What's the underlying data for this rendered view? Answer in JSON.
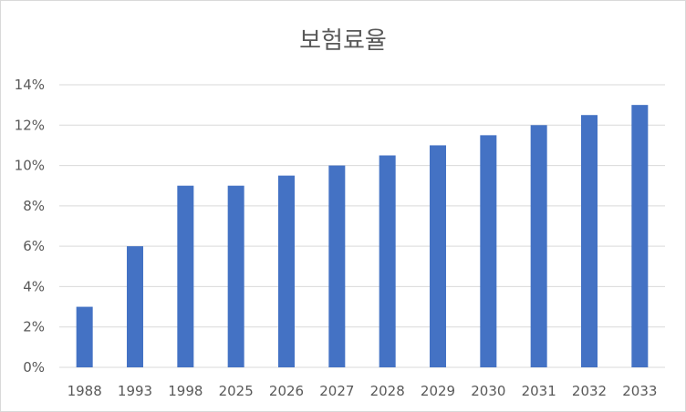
{
  "chart_data": {
    "type": "bar",
    "title": "보험료율",
    "xlabel": "",
    "ylabel": "",
    "categories": [
      "1988",
      "1993",
      "1998",
      "2025",
      "2026",
      "2027",
      "2028",
      "2029",
      "2030",
      "2031",
      "2032",
      "2033"
    ],
    "series": [
      {
        "values": [
          3,
          6,
          9,
          9,
          9.5,
          10,
          10.5,
          11,
          11.5,
          12,
          12.5,
          13
        ]
      }
    ],
    "ylim": [
      0,
      14
    ],
    "yticks": [
      0,
      2,
      4,
      6,
      8,
      10,
      12,
      14
    ],
    "ytick_format": "%",
    "grid": true,
    "legend": "none",
    "colors": {
      "bar": "#4472c4",
      "grid": "#d9d9d9",
      "text": "#595959"
    }
  }
}
